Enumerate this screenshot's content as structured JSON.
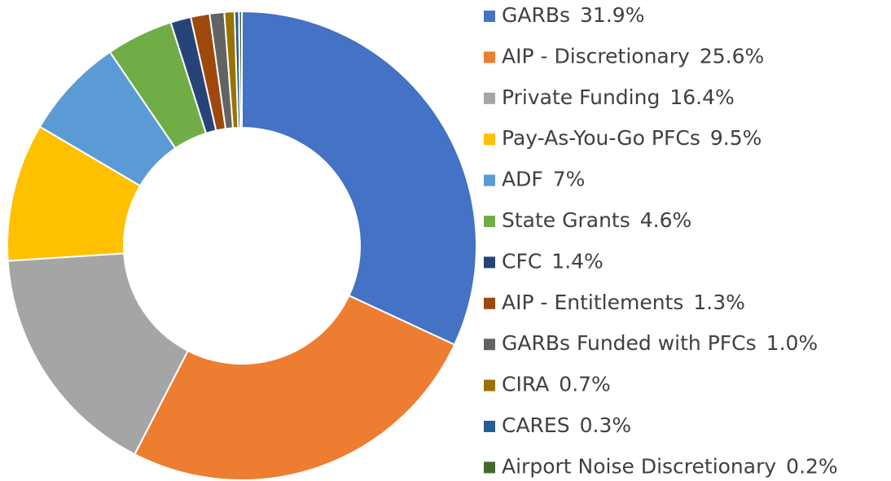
{
  "chart_data": {
    "type": "donut",
    "categories": [
      "GARBs",
      "AIP - Discretionary",
      "Private Funding",
      "Pay-As-You-Go PFCs",
      "ADF",
      "State Grants",
      "CFC",
      "AIP - Entitlements",
      "GARBs Funded with PFCs",
      "CIRA",
      "CARES",
      "Airport Noise Discretionary"
    ],
    "values": [
      31.9,
      25.6,
      16.4,
      9.5,
      7,
      4.6,
      1.4,
      1.3,
      1.0,
      0.7,
      0.3,
      0.2
    ],
    "value_labels": [
      "31.9%",
      "25.6%",
      "16.4%",
      "9.5%",
      "7%",
      "4.6%",
      "1.4%",
      "1.3%",
      "1.0%",
      "0.7%",
      "0.3%",
      "0.2%"
    ],
    "colors": [
      "#4472c4",
      "#ed7d31",
      "#a5a5a5",
      "#ffc000",
      "#5b9bd5",
      "#70ad47",
      "#264478",
      "#9e480e",
      "#636363",
      "#997300",
      "#255e91",
      "#43682b"
    ],
    "legend": "right"
  }
}
